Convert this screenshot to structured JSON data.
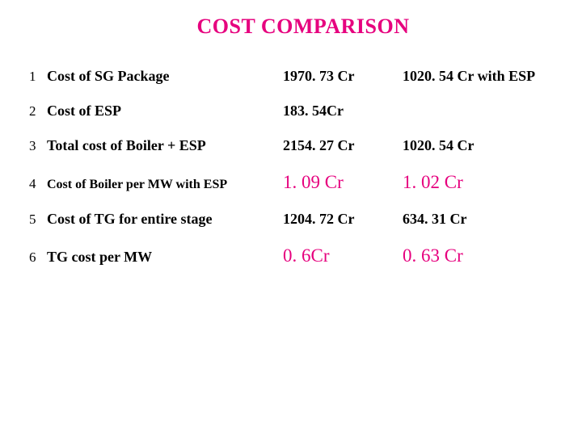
{
  "title": "COST COMPARISON",
  "rows": [
    {
      "num": "1",
      "desc": "Cost of SG Package",
      "val1": "1970. 73 Cr",
      "val2": "1020. 54 Cr with ESP"
    },
    {
      "num": "2",
      "desc": "Cost of ESP",
      "val1": "183. 54Cr",
      "val2": ""
    },
    {
      "num": "3",
      "desc": "Total cost of Boiler + ESP",
      "val1": "2154. 27 Cr",
      "val2": "1020. 54 Cr"
    },
    {
      "num": "4",
      "desc": "Cost of Boiler  per MW with ESP",
      "val1": "1. 09 Cr",
      "val2": "1. 02 Cr"
    },
    {
      "num": "5",
      "desc": "Cost of TG for entire stage",
      "val1": "1204. 72 Cr",
      "val2": "634. 31 Cr"
    },
    {
      "num": "6",
      "desc": "TG cost per  MW",
      "val1": "0. 6Cr",
      "val2": "0. 63 Cr"
    }
  ],
  "colors": {
    "accent": "#e6007e",
    "text": "#000000",
    "background": "#ffffff"
  }
}
